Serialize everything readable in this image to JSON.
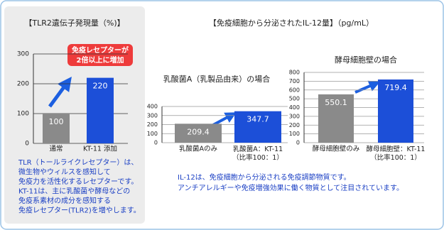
{
  "chart_data": [
    {
      "type": "bar",
      "title": "【TLR2遺伝子発現量（%)】",
      "categories": [
        "通常",
        "KT-11 添加"
      ],
      "values": [
        100,
        220
      ],
      "colors": [
        "#8a8a8a",
        "#1c4fd8"
      ],
      "ylim": [
        0,
        300
      ],
      "yticks": [
        0,
        100,
        200,
        300
      ],
      "grid": true,
      "annotation": [
        "免疫レセプターが",
        "2倍以上に増加"
      ]
    },
    {
      "type": "bar",
      "title": "乳酸菌A（乳製品由来）の場合",
      "categories": [
        "乳酸菌Aのみ",
        "乳酸菌A：KT-11（比率100：1）"
      ],
      "values": [
        209.4,
        347.7
      ],
      "colors": [
        "#8a8a8a",
        "#1c4fd8"
      ],
      "ylim": [
        0,
        400
      ],
      "yticks": [
        0,
        100,
        200,
        300,
        400
      ],
      "grid": true
    },
    {
      "type": "bar",
      "title": "酵母細胞壁の場合",
      "categories": [
        "酵母細胞壁のみ",
        "酵母細胞壁：KT-11（比率100：1）"
      ],
      "values": [
        550.1,
        719.4
      ],
      "colors": [
        "#8a8a8a",
        "#1c4fd8"
      ],
      "ylim": [
        0,
        800
      ],
      "yticks": [
        0,
        100,
        200,
        300,
        400,
        500,
        600,
        700,
        800
      ],
      "grid": true
    }
  ],
  "tlr_notes": [
    "TLR（トールライクレセプター）は、",
    "微生物やウィルスを感知して",
    "免疫力を活性化するレセプターです。",
    "KT-11は、主に乳酸菌や酵母などの",
    "免疫系素材の成分を感知する",
    "免疫レセプター(TLR2)を増やします。"
  ],
  "il12_title": "【免疫細胞から分泌されたIL-12量】（pg/mL）",
  "il12_notes": [
    "IL-12は、免疫細胞から分泌される免疫調節物質です。",
    "アンチアレルギーや免疫増強効果に働く物質として注目されています。"
  ]
}
